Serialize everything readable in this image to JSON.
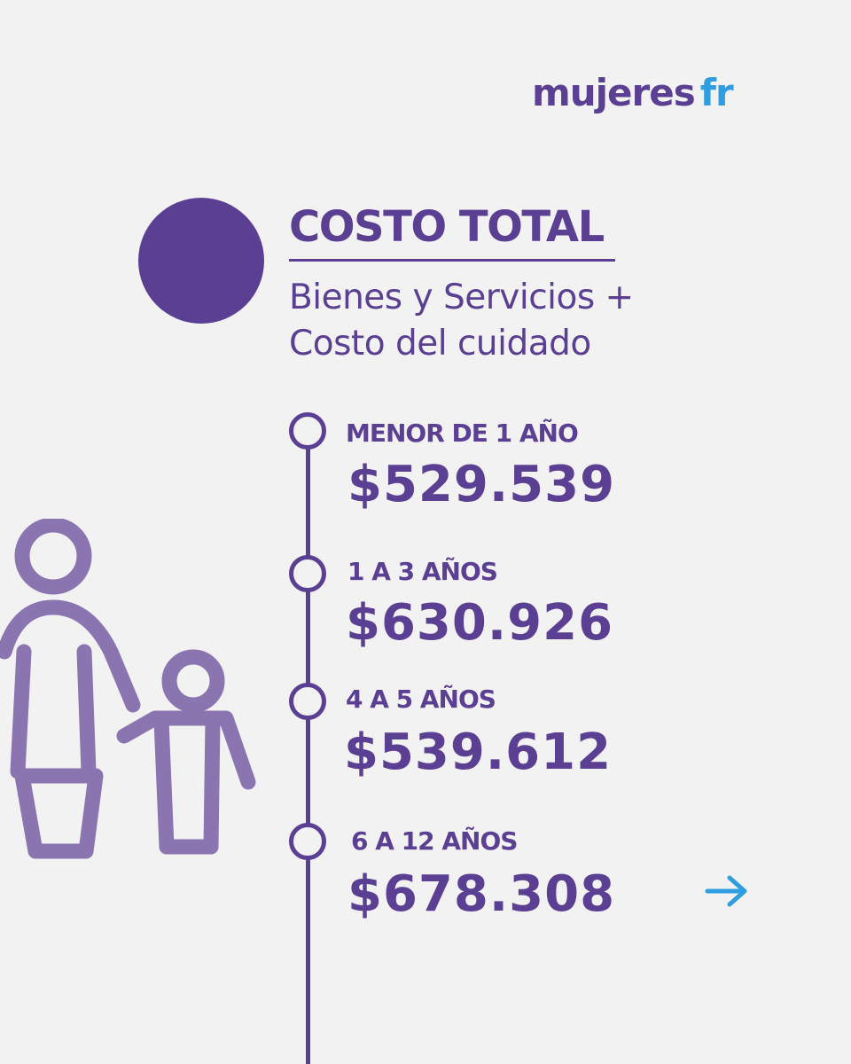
{
  "brand": {
    "name_main": "mujeres",
    "name_accent": "fr",
    "primary_color": "#5a3f93",
    "accent_color": "#2f9ee0",
    "icon_color": "#8a75b1"
  },
  "header": {
    "title": "COSTO TOTAL",
    "subtitle_line1": "Bienes y Servicios +",
    "subtitle_line2": "Costo del cuidado"
  },
  "timeline": [
    {
      "label": "MENOR DE 1 AÑO",
      "value": "$529.539"
    },
    {
      "label": "1 A 3 AÑOS",
      "value": "$630.926"
    },
    {
      "label": "4 A 5 AÑOS",
      "value": "$539.612"
    },
    {
      "label": "6 A 12 AÑOS",
      "value": "$678.308"
    }
  ],
  "icons": {
    "family": "mother-and-child-icon",
    "next": "arrow-right-icon"
  }
}
